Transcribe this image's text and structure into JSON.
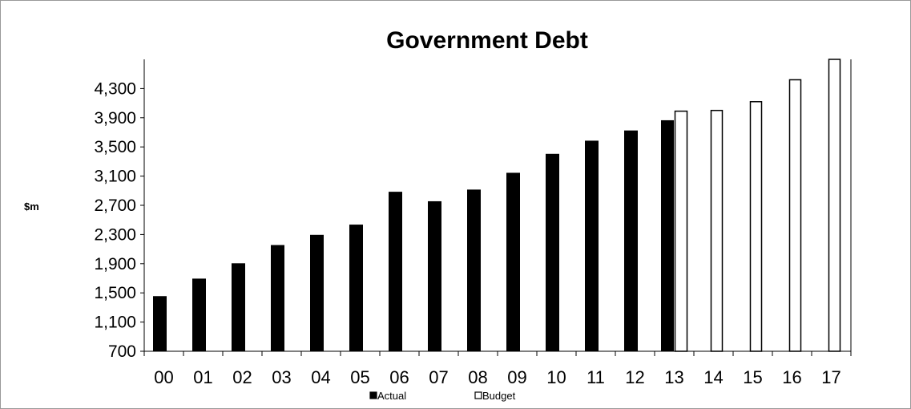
{
  "chart_data": {
    "type": "bar",
    "title": "Government Debt",
    "ylabel": "$m",
    "xlabel": "",
    "ylim": [
      700,
      4700
    ],
    "yticks": [
      "700",
      "1,100",
      "1,500",
      "1,900",
      "2,300",
      "2,700",
      "3,100",
      "3,500",
      "3,900",
      "4,300"
    ],
    "ytick_values": [
      700,
      1100,
      1500,
      1900,
      2300,
      2700,
      3100,
      3500,
      3900,
      4300
    ],
    "categories": [
      "00",
      "01",
      "02",
      "03",
      "04",
      "05",
      "06",
      "07",
      "08",
      "09",
      "10",
      "11",
      "12",
      "13",
      "14",
      "15",
      "16",
      "17"
    ],
    "series": [
      {
        "name": "Actual",
        "color": "#000000",
        "values": [
          1450,
          1690,
          1900,
          2150,
          2290,
          2430,
          2880,
          2750,
          2910,
          3140,
          3400,
          3580,
          3720,
          3860,
          null,
          null,
          null,
          null
        ]
      },
      {
        "name": "Budget",
        "color": "#ffffff",
        "values": [
          null,
          null,
          null,
          null,
          null,
          null,
          null,
          null,
          null,
          null,
          null,
          null,
          null,
          3990,
          4000,
          4120,
          4420,
          4700
        ]
      }
    ],
    "grid": false,
    "legend_position": "bottom"
  }
}
